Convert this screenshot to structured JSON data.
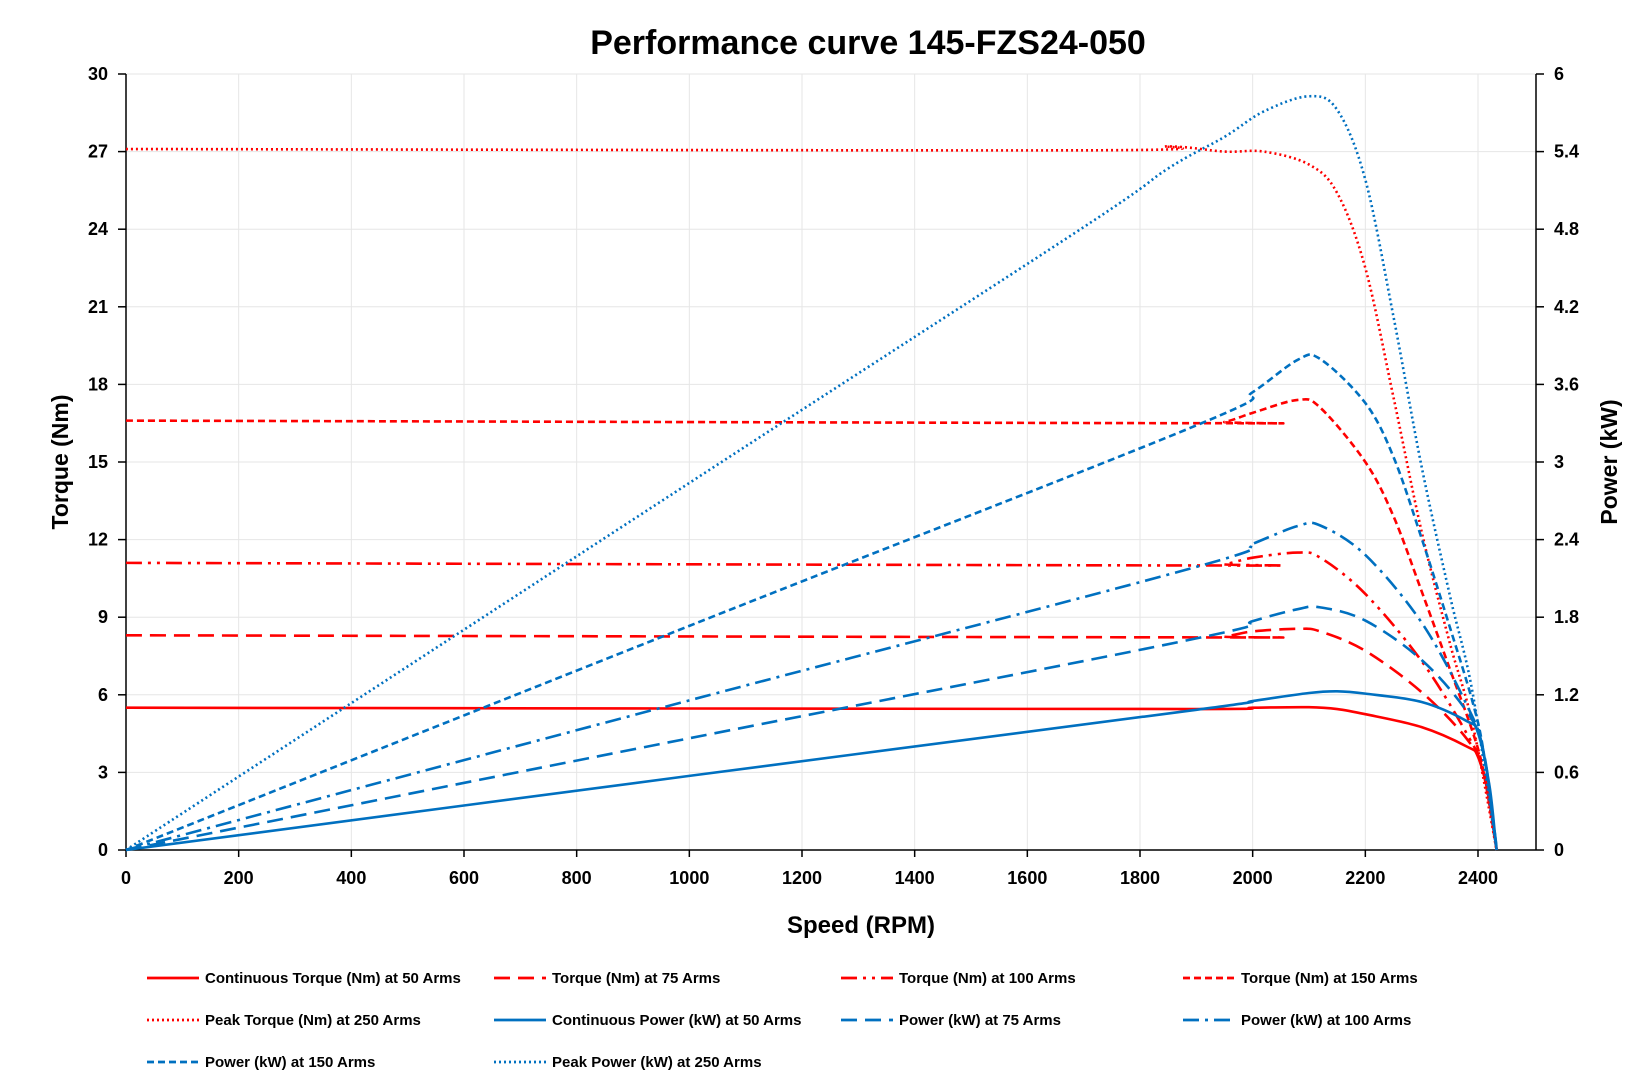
{
  "chart_data": {
    "type": "line",
    "title": "Performance curve 145-FZS24-050",
    "xlabel": "Speed (RPM)",
    "ylabel": "Torque (Nm)",
    "y2label": "Power (kW)",
    "xlim": [
      0,
      2500
    ],
    "ylim": [
      0,
      30
    ],
    "y2lim": [
      0,
      6
    ],
    "x_ticks": [
      "0",
      "200",
      "400",
      "600",
      "800",
      "1000",
      "1200",
      "1400",
      "1600",
      "1800",
      "2000",
      "2200",
      "2400"
    ],
    "y_ticks": [
      "0",
      "3",
      "6",
      "9",
      "12",
      "15",
      "18",
      "21",
      "24",
      "27",
      "30"
    ],
    "y2_ticks": [
      "0",
      "0.6",
      "1.2",
      "1.8",
      "2.4",
      "3",
      "3.6",
      "4.2",
      "4.8",
      "5.4",
      "6"
    ],
    "grid": true,
    "legend_position": "bottom",
    "colors": {
      "torque": "#ff0000",
      "power": "#0070c0"
    },
    "series": [
      {
        "name": "Continuous Torque (Nm) at 50 Arms",
        "axis": "left",
        "color": "#ff0000",
        "style": "solid",
        "x": [
          0,
          1000,
          1900,
          2000,
          2100,
          2150,
          2200,
          2300,
          2380,
          2400,
          2420,
          2430,
          2433
        ],
        "y": [
          5.5,
          5.47,
          5.45,
          5.5,
          5.52,
          5.45,
          5.25,
          4.75,
          4.0,
          3.6,
          2.0,
          0.5,
          0
        ]
      },
      {
        "name": "Torque (Nm) at 75 Arms",
        "axis": "left",
        "color": "#ff0000",
        "style": "dash",
        "x": [
          0,
          1900,
          1950,
          2000,
          2080,
          2120,
          2200,
          2300,
          2380,
          2410,
          2430,
          2433
        ],
        "y": [
          8.3,
          8.22,
          8.25,
          8.45,
          8.55,
          8.45,
          7.7,
          6.1,
          4.3,
          3.0,
          0.5,
          0
        ]
      },
      {
        "name": "Torque (Nm) at 100 Arms",
        "axis": "left",
        "color": "#ff0000",
        "style": "dash-dot-dot",
        "x": [
          0,
          1900,
          1950,
          2000,
          2080,
          2120,
          2200,
          2300,
          2380,
          2410,
          2433
        ],
        "y": [
          11.1,
          11.0,
          11.05,
          11.3,
          11.5,
          11.3,
          9.9,
          7.3,
          4.5,
          3.0,
          0
        ]
      },
      {
        "name": "Torque (Nm) at 150 Arms",
        "axis": "left",
        "color": "#ff0000",
        "style": "short-dash",
        "x": [
          0,
          1900,
          1950,
          2000,
          2080,
          2120,
          2200,
          2250,
          2300,
          2350,
          2390,
          2410,
          2433
        ],
        "y": [
          16.6,
          16.5,
          16.55,
          16.9,
          17.4,
          17.1,
          15.0,
          12.9,
          10.0,
          7.0,
          4.6,
          3.0,
          0
        ]
      },
      {
        "name": "Peak Torque (Nm) at 250 Arms",
        "axis": "left",
        "color": "#ff0000",
        "style": "dot",
        "x": [
          0,
          1700,
          1850,
          1950,
          2020,
          2100,
          2150,
          2200,
          2250,
          2300,
          2350,
          2390,
          2433
        ],
        "y": [
          27.1,
          27.05,
          27.2,
          27.0,
          27.0,
          26.5,
          25.4,
          22.5,
          17.5,
          12.3,
          8.0,
          4.9,
          0
        ]
      },
      {
        "name": "Continuous Power (kW) at 50 Arms",
        "axis": "right",
        "color": "#0070c0",
        "style": "solid",
        "x": [
          0,
          1000,
          1900,
          2000,
          2100,
          2150,
          2200,
          2300,
          2380,
          2400,
          2420,
          2430,
          2433
        ],
        "y": [
          0,
          0.573,
          1.084,
          1.152,
          1.214,
          1.227,
          1.209,
          1.144,
          0.997,
          0.905,
          0.507,
          0.127,
          0
        ]
      },
      {
        "name": "Power (kW) at 75 Arms",
        "axis": "right",
        "color": "#0070c0",
        "style": "dash",
        "x": [
          0,
          1000,
          1900,
          2000,
          2080,
          2120,
          2200,
          2300,
          2380,
          2410,
          2430,
          2433
        ],
        "y": [
          0,
          0.864,
          1.636,
          1.77,
          1.862,
          1.876,
          1.774,
          1.469,
          1.072,
          0.757,
          0.127,
          0
        ]
      },
      {
        "name": "Power (kW) at 100 Arms",
        "axis": "right",
        "color": "#0070c0",
        "style": "dash-dot",
        "x": [
          0,
          1000,
          1900,
          2000,
          2080,
          2120,
          2200,
          2300,
          2380,
          2410,
          2433
        ],
        "y": [
          0,
          1.157,
          2.189,
          2.367,
          2.505,
          2.509,
          2.281,
          1.758,
          1.122,
          0.757,
          0
        ]
      },
      {
        "name": "Power (kW) at 150 Arms",
        "axis": "right",
        "color": "#0070c0",
        "style": "short-dash",
        "x": [
          0,
          1000,
          1900,
          2000,
          2080,
          2120,
          2200,
          2250,
          2300,
          2350,
          2390,
          2410,
          2433
        ],
        "y": [
          0,
          1.733,
          3.283,
          3.54,
          3.79,
          3.796,
          3.456,
          3.039,
          2.409,
          1.723,
          1.151,
          0.757,
          0
        ]
      },
      {
        "name": "Peak Power (kW) at 250 Arms",
        "axis": "right",
        "color": "#0070c0",
        "style": "dot",
        "x": [
          0,
          1000,
          1700,
          1850,
          1950,
          2020,
          2100,
          2150,
          2200,
          2250,
          2300,
          2350,
          2390,
          2433
        ],
        "y": [
          0,
          2.838,
          4.816,
          5.27,
          5.514,
          5.711,
          5.828,
          5.723,
          5.183,
          4.123,
          2.962,
          1.969,
          1.226,
          0
        ]
      }
    ]
  }
}
